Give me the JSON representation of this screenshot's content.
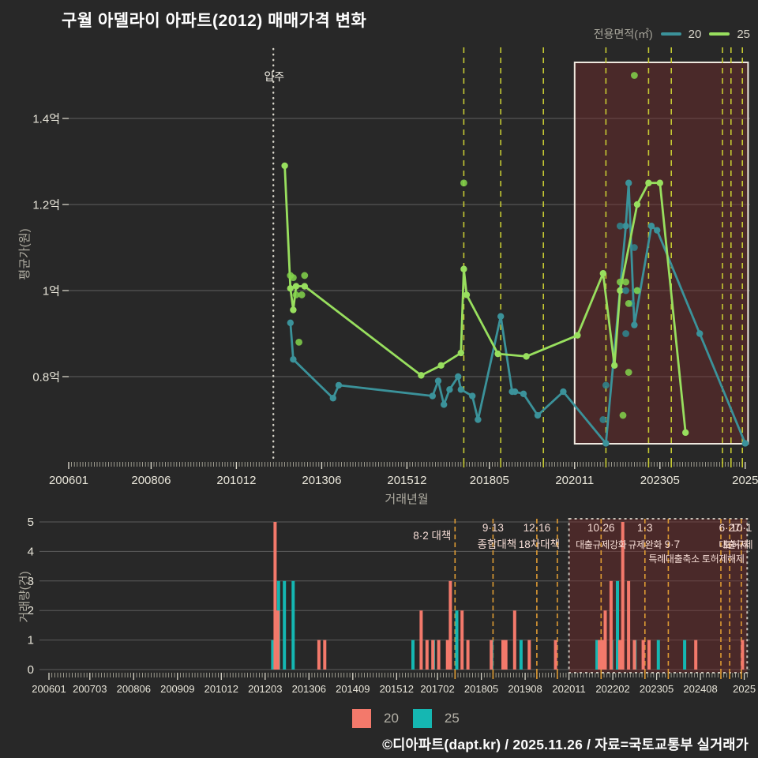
{
  "title": "구월 아델라이 아파트(2012) 매매가격 변화",
  "footer": "©디아파트(dapt.kr) / 2025.11.26 / 자료=국토교통부 실거래가",
  "colors": {
    "background": "#282828",
    "series20_line": "#3b929a",
    "series25_line": "#98df5e",
    "bar20": "#f3796b",
    "bar25": "#15b7b2",
    "policy_line_top": "#c6ca33",
    "policy_line_bottom": "#de9b33",
    "highlight_fill": "#7a2b2b",
    "grid": "#808080"
  },
  "top_legend": {
    "label": "전용면적(㎡)",
    "items": [
      {
        "label": "20",
        "color": "#3b929a"
      },
      {
        "label": "25",
        "color": "#98df5e"
      }
    ]
  },
  "bottom_legend": {
    "items": [
      {
        "label": "20",
        "color": "#f3796b"
      },
      {
        "label": "25",
        "color": "#15b7b2"
      }
    ]
  },
  "chart_data": [
    {
      "type": "line",
      "name": "price",
      "title": "",
      "xlabel": "거래년월",
      "ylabel": "평균가(원)",
      "unit": "억",
      "ylim": [
        0.6,
        1.55
      ],
      "grid": true,
      "yticks": [
        {
          "v": 0.8,
          "label": "0.8억"
        },
        {
          "v": 1.0,
          "label": "1억"
        },
        {
          "v": 1.2,
          "label": "1.2억"
        },
        {
          "v": 1.4,
          "label": "1.4억"
        }
      ],
      "xticks": [
        {
          "m": "2006-01",
          "label": "200601"
        },
        {
          "m": "2008-06",
          "label": "200806"
        },
        {
          "m": "2010-12",
          "label": "201012"
        },
        {
          "m": "2013-06",
          "label": "201306"
        },
        {
          "m": "2015-12",
          "label": "201512"
        },
        {
          "m": "2018-05",
          "label": "201805"
        },
        {
          "m": "2020-11",
          "label": "202011"
        },
        {
          "m": "2023-05",
          "label": "202305"
        },
        {
          "m": "2025-11",
          "label": "2025"
        }
      ],
      "move_in": {
        "m": "2012-01",
        "label": "입주"
      },
      "policy_lines": [
        "2017-08",
        "2018-09",
        "2019-12",
        "2021-10",
        "2023-01",
        "2023-09",
        "2025-03",
        "2025-06",
        "2025-10"
      ],
      "highlight_box": {
        "from": "2020-11",
        "to": "2025-12"
      },
      "series": [
        {
          "name": "20",
          "color": "#3b929a",
          "points": [
            [
              "2012-07",
              0.925
            ],
            [
              "2012-08",
              0.84
            ],
            [
              "2013-10",
              0.75
            ],
            [
              "2013-12",
              0.78
            ],
            [
              "2016-09",
              0.755
            ],
            [
              "2016-11",
              0.79
            ],
            [
              "2017-01",
              0.735
            ],
            [
              "2017-03",
              0.77
            ],
            [
              "2017-06",
              0.8
            ],
            [
              "2017-07",
              0.77
            ],
            [
              "2017-11",
              0.755
            ],
            [
              "2018-01",
              0.7
            ],
            [
              "2018-09",
              0.94
            ],
            [
              "2019-01",
              0.765
            ],
            [
              "2019-02",
              0.765
            ],
            [
              "2019-05",
              0.76
            ],
            [
              "2019-10",
              0.71
            ],
            [
              "2020-07",
              0.765
            ],
            [
              "2021-10",
              0.645
            ],
            [
              "2022-05",
              1.15
            ],
            [
              "2022-06",
              1.25
            ],
            [
              "2022-08",
              0.92
            ],
            [
              "2023-02",
              1.15
            ],
            [
              "2023-04",
              1.14
            ],
            [
              "2024-07",
              0.9
            ],
            [
              "2025-11",
              0.645
            ]
          ]
        },
        {
          "name": "25",
          "color": "#98df5e",
          "points": [
            [
              "2012-05",
              1.29
            ],
            [
              "2012-07",
              1.005
            ],
            [
              "2012-08",
              0.955
            ],
            [
              "2012-09",
              1.01
            ],
            [
              "2012-12",
              1.01
            ],
            [
              "2016-05",
              0.803
            ],
            [
              "2016-12",
              0.826
            ],
            [
              "2017-07",
              0.855
            ],
            [
              "2017-08",
              1.05
            ],
            [
              "2017-09",
              0.99
            ],
            [
              "2018-08",
              0.853
            ],
            [
              "2019-06",
              0.847
            ],
            [
              "2020-12",
              0.896
            ],
            [
              "2021-09",
              1.04
            ],
            [
              "2022-01",
              0.826
            ],
            [
              "2022-03",
              1.0
            ],
            [
              "2022-09",
              1.2
            ],
            [
              "2023-01",
              1.25
            ],
            [
              "2023-05",
              1.25
            ],
            [
              "2024-02",
              0.67
            ]
          ]
        }
      ],
      "scatter": [
        {
          "name": "20",
          "color": "#2f8790",
          "points": [
            [
              "2022-03",
              1.15
            ],
            [
              "2022-08",
              1.1
            ],
            [
              "2022-05",
              1.0
            ],
            [
              "2022-09",
              1.0
            ],
            [
              "2022-07",
              0.97
            ],
            [
              "2022-05",
              0.9
            ],
            [
              "2021-10",
              0.78
            ],
            [
              "2021-09",
              0.7
            ]
          ]
        },
        {
          "name": "25",
          "color": "#83d34b",
          "points": [
            [
              "2012-07",
              1.035
            ],
            [
              "2012-08",
              1.03
            ],
            [
              "2012-12",
              1.035
            ],
            [
              "2012-09",
              0.99
            ],
            [
              "2012-11",
              0.99
            ],
            [
              "2012-10",
              0.88
            ],
            [
              "2017-08",
              1.25
            ],
            [
              "2022-08",
              1.5
            ],
            [
              "2022-03",
              1.02
            ],
            [
              "2022-05",
              1.02
            ],
            [
              "2022-06",
              0.97
            ],
            [
              "2022-09",
              1.0
            ],
            [
              "2022-06",
              0.81
            ],
            [
              "2022-04",
              0.71
            ]
          ]
        }
      ]
    },
    {
      "type": "bar",
      "name": "volume",
      "xlabel": "",
      "ylabel": "거래량(건)",
      "ylim": [
        0,
        5
      ],
      "grid": true,
      "yticks": [
        0,
        1,
        2,
        3,
        4,
        5
      ],
      "xticks": [
        {
          "m": "2006-01",
          "label": "200601"
        },
        {
          "m": "2007-03",
          "label": "200703"
        },
        {
          "m": "2008-06",
          "label": "200806"
        },
        {
          "m": "2009-09",
          "label": "200909"
        },
        {
          "m": "2010-12",
          "label": "201012"
        },
        {
          "m": "2012-03",
          "label": "201203"
        },
        {
          "m": "2013-06",
          "label": "201306"
        },
        {
          "m": "2014-09",
          "label": "201409"
        },
        {
          "m": "2015-12",
          "label": "201512"
        },
        {
          "m": "2017-02",
          "label": "201702"
        },
        {
          "m": "2018-05",
          "label": "201805"
        },
        {
          "m": "2019-08",
          "label": "201908"
        },
        {
          "m": "2020-11",
          "label": "202011"
        },
        {
          "m": "2022-02",
          "label": "202202"
        },
        {
          "m": "2023-05",
          "label": "202305"
        },
        {
          "m": "2024-08",
          "label": "202408"
        },
        {
          "m": "2025-11",
          "label": "2025"
        }
      ],
      "policy_lines": [
        "2017-08",
        "2018-09",
        "2019-12",
        "2020-07",
        "2021-10",
        "2023-01",
        "2023-09",
        "2025-03",
        "2025-06",
        "2025-10"
      ],
      "highlight_box": {
        "from": "2020-11",
        "to": "2025-12"
      },
      "annotations": [
        {
          "text": "8·2 대책",
          "m": "2017-08",
          "dx": -5,
          "row": 1.5,
          "align": "end",
          "big": true
        },
        {
          "text": "9·13",
          "m": "2018-09",
          "dx": 0,
          "row": 1,
          "align": "middle",
          "big": true
        },
        {
          "text": "종합대책",
          "m": "2018-09",
          "dx": 5,
          "row": 2,
          "align": "middle",
          "big": true
        },
        {
          "text": "12·16",
          "m": "2019-12",
          "dx": 0,
          "row": 1,
          "align": "middle",
          "big": true
        },
        {
          "text": "18차대책",
          "m": "2019-12",
          "dx": 3,
          "row": 2,
          "align": "middle",
          "big": true
        },
        {
          "text": "10·26",
          "m": "2021-10",
          "dx": 0,
          "row": 1,
          "align": "middle",
          "big": true
        },
        {
          "text": "대출규제강화",
          "m": "2021-10",
          "dx": 0,
          "row": 2,
          "align": "middle",
          "big": false
        },
        {
          "text": "1·3",
          "m": "2023-01",
          "dx": 0,
          "row": 1,
          "align": "middle",
          "big": true
        },
        {
          "text": "규제완화",
          "m": "2023-01",
          "dx": 0,
          "row": 2,
          "align": "middle",
          "big": false
        },
        {
          "text": "9·7",
          "m": "2023-09",
          "dx": 5,
          "row": 2,
          "align": "middle",
          "big": true
        },
        {
          "text": "특례대출축소 토허제해제",
          "m": "2023-09",
          "dx": -25,
          "row": 3,
          "align": "start",
          "big": false
        },
        {
          "text": "6·27",
          "m": "2025-06",
          "dx": 0,
          "row": 1,
          "align": "middle",
          "big": true
        },
        {
          "text": "10·1",
          "m": "2025-10",
          "dx": 0,
          "row": 1,
          "align": "middle",
          "big": true
        },
        {
          "text": "토허제",
          "m": "2025-08",
          "dx": 0,
          "row": 2,
          "align": "middle",
          "big": false
        },
        {
          "text": "대출규제",
          "m": "2025-07",
          "dx": 4,
          "row": 2,
          "align": "middle",
          "big": false
        }
      ],
      "series_colors": {
        "20": "#f3796b",
        "25": "#15b7b2"
      },
      "bars": [
        {
          "m": "2012-05",
          "h": 1,
          "s": "25"
        },
        {
          "m": "2012-07",
          "h": 5,
          "s": "20"
        },
        {
          "m": "2012-07",
          "h": 3,
          "s": "25"
        },
        {
          "m": "2012-08",
          "h": 2,
          "s": "20"
        },
        {
          "m": "2012-09",
          "h": 3,
          "s": "25"
        },
        {
          "m": "2012-12",
          "h": 3,
          "s": "25"
        },
        {
          "m": "2013-10",
          "h": 1,
          "s": "20"
        },
        {
          "m": "2013-12",
          "h": 1,
          "s": "20"
        },
        {
          "m": "2016-05",
          "h": 1,
          "s": "25"
        },
        {
          "m": "2016-09",
          "h": 2,
          "s": "20"
        },
        {
          "m": "2016-11",
          "h": 1,
          "s": "20"
        },
        {
          "m": "2016-12",
          "h": 1,
          "s": "25"
        },
        {
          "m": "2017-01",
          "h": 1,
          "s": "20"
        },
        {
          "m": "2017-03",
          "h": 1,
          "s": "20"
        },
        {
          "m": "2017-06",
          "h": 1,
          "s": "20"
        },
        {
          "m": "2017-07",
          "h": 3,
          "s": "20"
        },
        {
          "m": "2017-08",
          "h": 2,
          "s": "25"
        },
        {
          "m": "2017-11",
          "h": 2,
          "s": "20"
        },
        {
          "m": "2018-01",
          "h": 1,
          "s": "20"
        },
        {
          "m": "2018-08",
          "h": 1,
          "s": "25"
        },
        {
          "m": "2018-09",
          "h": 1,
          "s": "20"
        },
        {
          "m": "2019-01",
          "h": 1,
          "s": "20"
        },
        {
          "m": "2019-02",
          "h": 1,
          "s": "20"
        },
        {
          "m": "2019-05",
          "h": 2,
          "s": "20"
        },
        {
          "m": "2019-06",
          "h": 1,
          "s": "25"
        },
        {
          "m": "2019-10",
          "h": 1,
          "s": "20"
        },
        {
          "m": "2020-07",
          "h": 1,
          "s": "20"
        },
        {
          "m": "2021-08",
          "h": 1,
          "s": "25"
        },
        {
          "m": "2021-10",
          "h": 1,
          "s": "20"
        },
        {
          "m": "2021-11",
          "h": 1,
          "s": "20"
        },
        {
          "m": "2021-12",
          "h": 2,
          "s": "20"
        },
        {
          "m": "2022-01",
          "h": 1,
          "s": "25"
        },
        {
          "m": "2022-02",
          "h": 3,
          "s": "20"
        },
        {
          "m": "2022-03",
          "h": 3,
          "s": "25"
        },
        {
          "m": "2022-05",
          "h": 1,
          "s": "20"
        },
        {
          "m": "2022-06",
          "h": 5,
          "s": "20"
        },
        {
          "m": "2022-08",
          "h": 3,
          "s": "20"
        },
        {
          "m": "2022-09",
          "h": 1,
          "s": "25"
        },
        {
          "m": "2022-10",
          "h": 1,
          "s": "20"
        },
        {
          "m": "2023-01",
          "h": 1,
          "s": "20"
        },
        {
          "m": "2023-03",
          "h": 1,
          "s": "20"
        },
        {
          "m": "2023-05",
          "h": 1,
          "s": "25"
        },
        {
          "m": "2024-02",
          "h": 1,
          "s": "25"
        },
        {
          "m": "2024-07",
          "h": 1,
          "s": "20"
        },
        {
          "m": "2025-11",
          "h": 1,
          "s": "20"
        }
      ]
    }
  ]
}
